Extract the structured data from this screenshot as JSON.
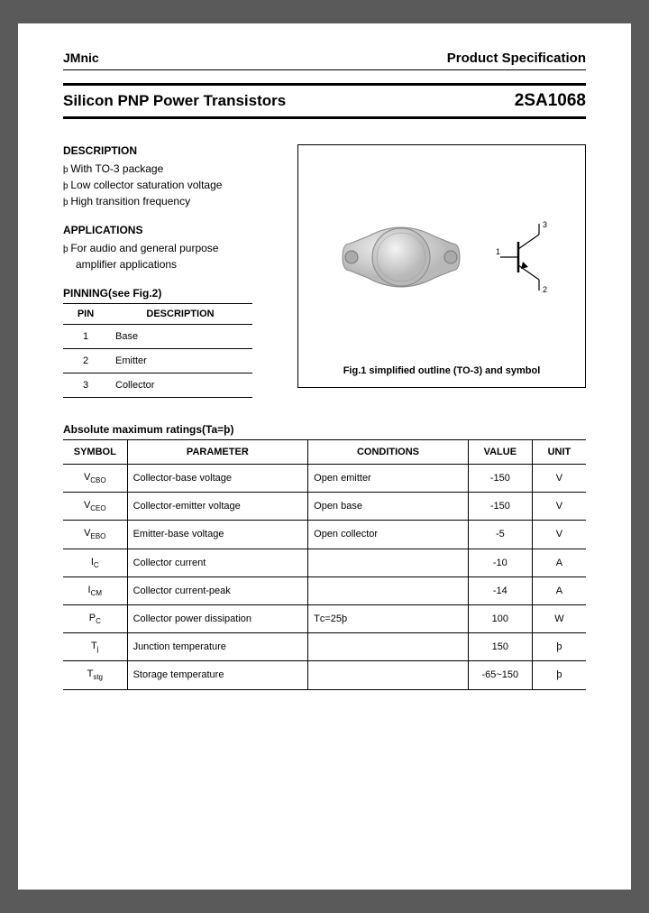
{
  "header": {
    "brand": "JMnic",
    "spec": "Product Specification"
  },
  "title": {
    "left": "Silicon PNP Power Transistors",
    "right": "2SA1068"
  },
  "description": {
    "heading": "DESCRIPTION",
    "items": [
      "With TO-3 package",
      "Low collector saturation voltage",
      "High transition frequency"
    ]
  },
  "applications": {
    "heading": "APPLICATIONS",
    "line1": "For audio and general purpose",
    "line2": "amplifier applications"
  },
  "pinning": {
    "heading": "PINNING(see Fig.2)",
    "cols": {
      "pin": "PIN",
      "desc": "DESCRIPTION"
    },
    "rows": [
      {
        "pin": "1",
        "desc": "Base"
      },
      {
        "pin": "2",
        "desc": "Emitter"
      },
      {
        "pin": "3",
        "desc": "Collector"
      }
    ]
  },
  "figure": {
    "caption": "Fig.1 simplified outline (TO-3) and symbol",
    "symbol_labels": {
      "base": "1",
      "emitter": "2",
      "collector": "3"
    },
    "colors": {
      "border": "#000000",
      "pkg_fill": "#d8d8d8",
      "pkg_stroke": "#808080"
    }
  },
  "ratings": {
    "heading": "Absolute maximum ratings(Ta=þ)",
    "cols": {
      "symbol": "SYMBOL",
      "param": "PARAMETER",
      "cond": "CONDITIONS",
      "value": "VALUE",
      "unit": "UNIT"
    },
    "rows": [
      {
        "sym": "V",
        "sub": "CBO",
        "param": "Collector-base voltage",
        "cond": "Open emitter",
        "val": "-150",
        "unit": "V"
      },
      {
        "sym": "V",
        "sub": "CEO",
        "param": "Collector-emitter voltage",
        "cond": "Open base",
        "val": "-150",
        "unit": "V"
      },
      {
        "sym": "V",
        "sub": "EBO",
        "param": "Emitter-base voltage",
        "cond": "Open collector",
        "val": "-5",
        "unit": "V"
      },
      {
        "sym": "I",
        "sub": "C",
        "param": "Collector current",
        "cond": "",
        "val": "-10",
        "unit": "A"
      },
      {
        "sym": "I",
        "sub": "CM",
        "param": "Collector current-peak",
        "cond": "",
        "val": "-14",
        "unit": "A"
      },
      {
        "sym": "P",
        "sub": "C",
        "param": "Collector power dissipation",
        "cond": "Tᴄ=25þ",
        "val": "100",
        "unit": "W"
      },
      {
        "sym": "T",
        "sub": "j",
        "param": "Junction temperature",
        "cond": "",
        "val": "150",
        "unit": "þ"
      },
      {
        "sym": "T",
        "sub": "stg",
        "param": "Storage temperature",
        "cond": "",
        "val": "-65~150",
        "unit": "þ"
      }
    ]
  },
  "styling": {
    "page_bg": "#ffffff",
    "outer_bg": "#5a5a5a",
    "text_color": "#000000",
    "rule_thick": 3,
    "rule_thin": 1,
    "font_family": "Arial",
    "font_size_body": 12,
    "font_size_title": 17,
    "font_size_part": 19
  }
}
